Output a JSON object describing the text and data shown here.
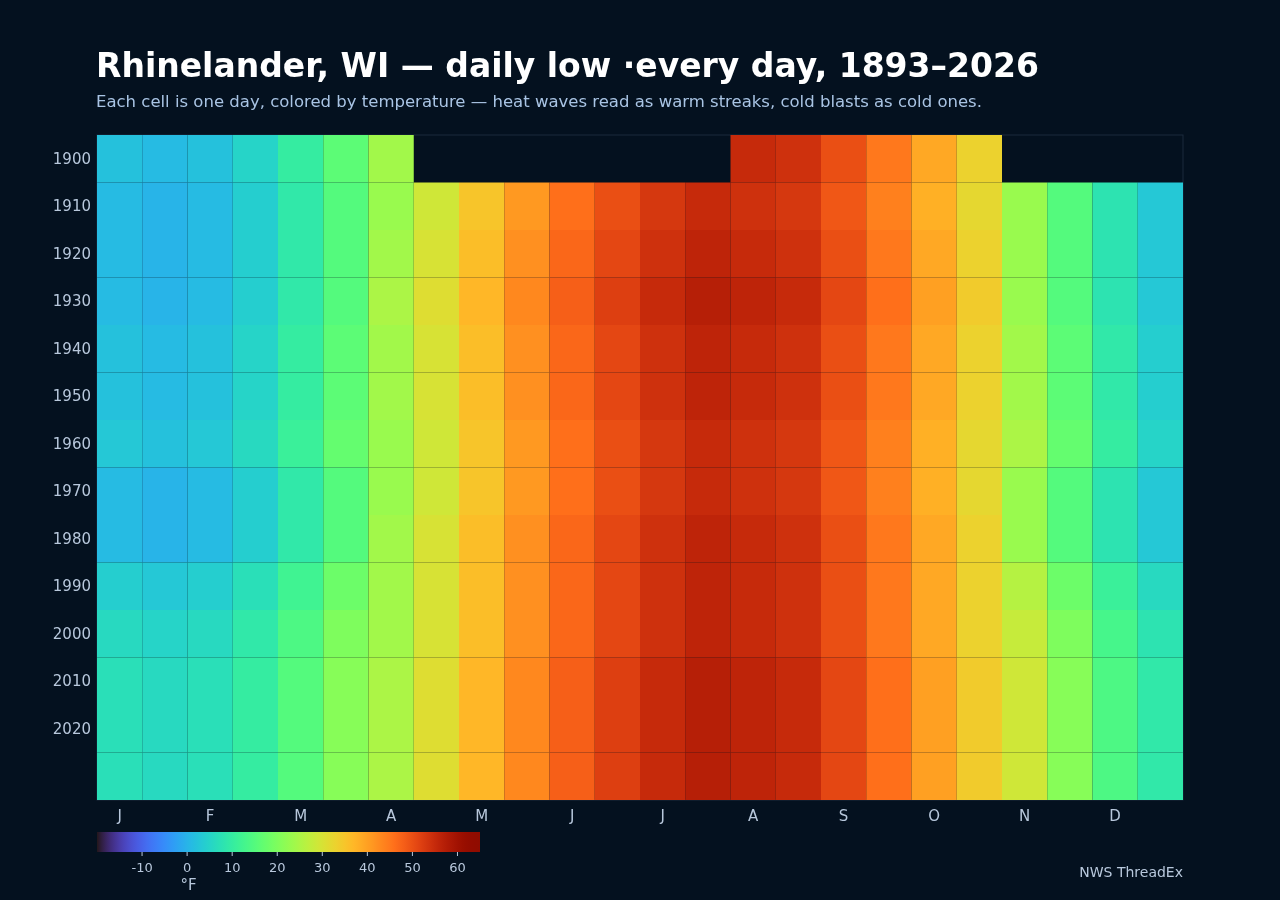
{
  "chart_data": {
    "type": "heatmap",
    "title": "Rhinelander, WI — daily low ·every day, 1893–2026",
    "subtitle": "Each cell is one day, colored by temperature — heat waves read as warm streaks, cold blasts as cold ones.",
    "clabel": "°F",
    "annotations": [
      "NWS ThreadEx"
    ],
    "categories": [
      "J",
      null,
      "F",
      null,
      "M",
      null,
      "A",
      null,
      "M",
      null,
      "J",
      null,
      "J",
      null,
      "A",
      null,
      "S",
      null,
      "O",
      null,
      "N",
      null,
      "D",
      null
    ],
    "y_categories": [
      "1900",
      "1910",
      "1920",
      "1930",
      "1940",
      "1950",
      "1960",
      "1970",
      "1980",
      "1990",
      "2000",
      "2010",
      "2020",
      null
    ],
    "clim": [
      -20,
      65
    ],
    "cticks": [
      -10,
      0,
      10,
      20,
      30,
      40,
      50,
      60
    ],
    "cells": [
      [
        2,
        1,
        2,
        5,
        10,
        16,
        24,
        null,
        null,
        null,
        null,
        null,
        null,
        null,
        55,
        54,
        50,
        45,
        39,
        33,
        null,
        null,
        null,
        null
      ],
      [
        1,
        0,
        1,
        4,
        9,
        15,
        23,
        29,
        35,
        41,
        46,
        50,
        53,
        55,
        54,
        53,
        49,
        44,
        38,
        32,
        23,
        15,
        8,
        3
      ],
      [
        1,
        0,
        1,
        4,
        9,
        15,
        24,
        30,
        36,
        42,
        47,
        51,
        54,
        56,
        55,
        54,
        50,
        45,
        39,
        33,
        23,
        15,
        8,
        3
      ],
      [
        1,
        0,
        1,
        4,
        9,
        15,
        25,
        31,
        37,
        43,
        48,
        52,
        55,
        57,
        56,
        55,
        51,
        46,
        40,
        34,
        23,
        15,
        8,
        3
      ],
      [
        2,
        1,
        2,
        5,
        10,
        16,
        24,
        30,
        36,
        42,
        47,
        51,
        54,
        56,
        55,
        54,
        50,
        45,
        39,
        33,
        24,
        16,
        9,
        4
      ],
      [
        2,
        1,
        2,
        5,
        10,
        16,
        24,
        30,
        36,
        42,
        47,
        51,
        54,
        56,
        55,
        54,
        50,
        45,
        39,
        33,
        24,
        16,
        9,
        4
      ],
      [
        3,
        2,
        3,
        6,
        11,
        17,
        23,
        29,
        35,
        41,
        46,
        50,
        53,
        55,
        54,
        53,
        49,
        44,
        38,
        32,
        25,
        17,
        10,
        5
      ],
      [
        1,
        0,
        1,
        4,
        9,
        15,
        23,
        29,
        35,
        41,
        46,
        50,
        53,
        55,
        54,
        53,
        49,
        44,
        38,
        32,
        23,
        15,
        8,
        3
      ],
      [
        1,
        0,
        1,
        4,
        9,
        15,
        24,
        30,
        36,
        42,
        47,
        51,
        54,
        56,
        55,
        54,
        50,
        45,
        39,
        33,
        23,
        15,
        8,
        3
      ],
      [
        4,
        3,
        4,
        7,
        12,
        18,
        24,
        30,
        36,
        42,
        47,
        51,
        54,
        56,
        55,
        54,
        50,
        45,
        39,
        33,
        26,
        18,
        11,
        6
      ],
      [
        6,
        5,
        6,
        9,
        14,
        20,
        24,
        30,
        36,
        42,
        47,
        51,
        54,
        56,
        55,
        54,
        50,
        45,
        39,
        33,
        28,
        20,
        13,
        8
      ],
      [
        7,
        6,
        7,
        10,
        15,
        21,
        25,
        31,
        37,
        43,
        48,
        52,
        55,
        57,
        56,
        55,
        51,
        46,
        40,
        34,
        29,
        21,
        14,
        9
      ],
      [
        7,
        6,
        7,
        10,
        15,
        21,
        25,
        31,
        37,
        43,
        48,
        52,
        55,
        57,
        56,
        55,
        51,
        46,
        40,
        34,
        29,
        21,
        14,
        9
      ],
      [
        7,
        6,
        7,
        10,
        15,
        21,
        25,
        31,
        37,
        43,
        48,
        52,
        55,
        57,
        56,
        55,
        51,
        46,
        40,
        34,
        29,
        21,
        14,
        9
      ]
    ]
  }
}
